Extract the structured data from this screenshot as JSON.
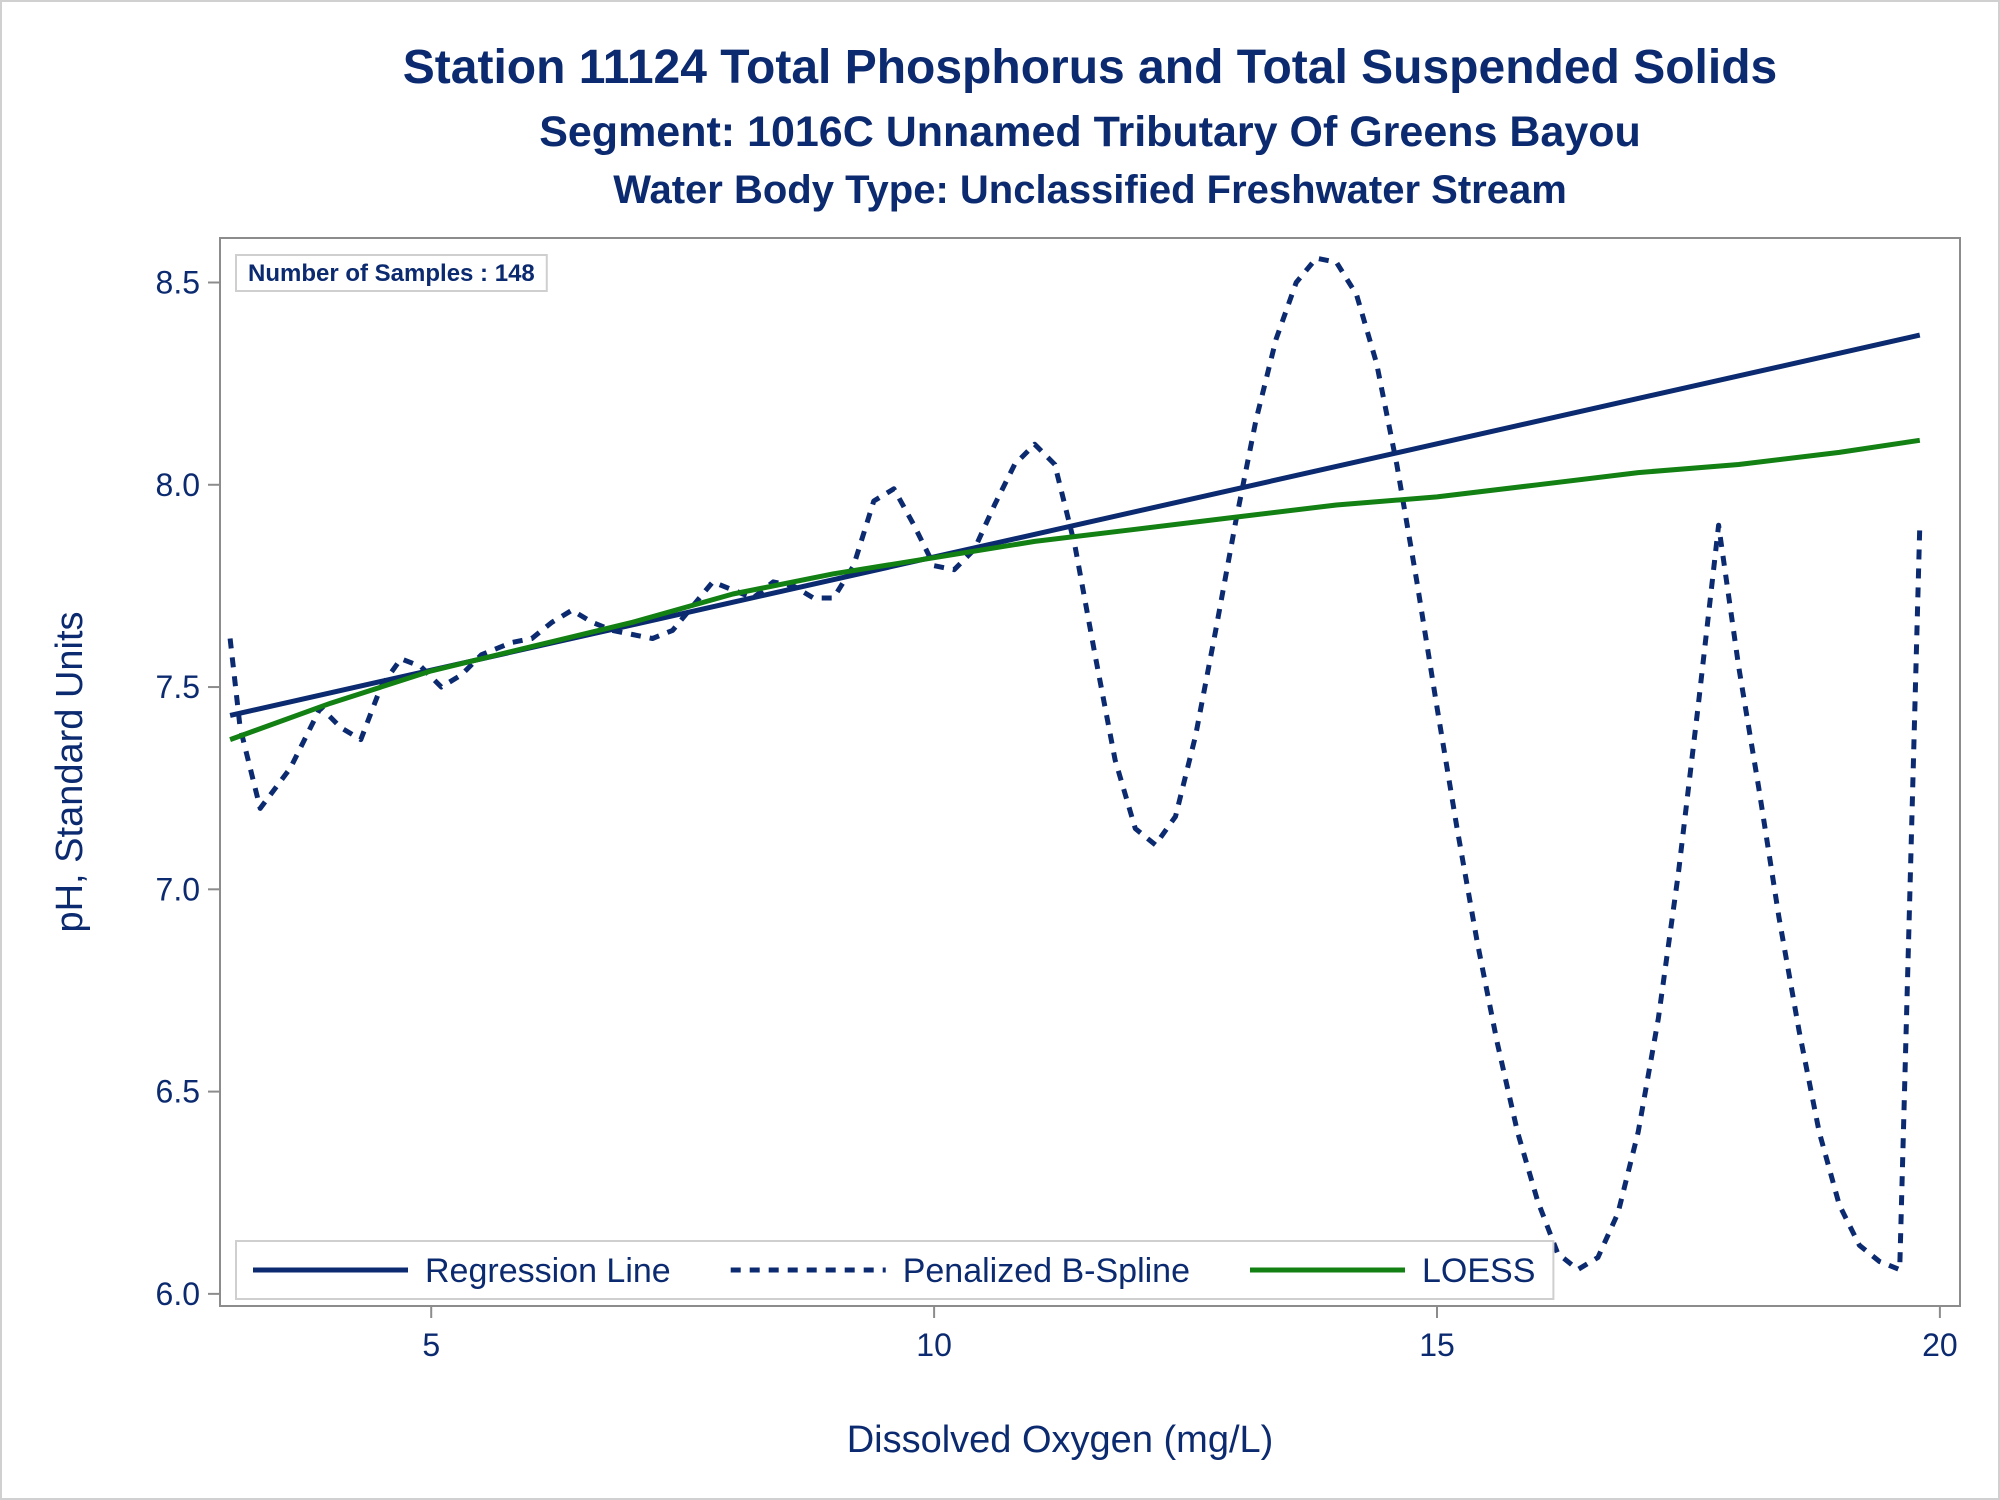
{
  "titles": {
    "line1": "Station 11124  Total Phosphorus and Total Suspended Solids",
    "line2": "Segment: 1016C  Unnamed Tributary Of Greens Bayou",
    "line3": "Water Body Type: Unclassified Freshwater Stream"
  },
  "inset": {
    "text": "Number of Samples : 148"
  },
  "colors": {
    "text": "#0b2a6f",
    "regression": "#0b2a6f",
    "spline": "#0b2a6f",
    "loess": "#138013",
    "axis": "#8c8c8c"
  },
  "chart_data": {
    "type": "line",
    "xlabel": "Dissolved Oxygen (mg/L)",
    "ylabel": "pH, Standard Units",
    "xlim": [
      2.9,
      20.2
    ],
    "ylim": [
      5.97,
      8.61
    ],
    "xticks": [
      5,
      10,
      15,
      20
    ],
    "xtick_labels": [
      "5",
      "10",
      "15",
      "20"
    ],
    "yticks": [
      6.0,
      6.5,
      7.0,
      7.5,
      8.0,
      8.5
    ],
    "ytick_labels": [
      "6.0",
      "6.5",
      "7.0",
      "7.5",
      "8.0",
      "8.5"
    ],
    "grid": false,
    "legend_position": "bottom-left",
    "series": [
      {
        "name": "Regression Line",
        "style": "solid",
        "color": "#0b2a6f",
        "x": [
          3.0,
          19.8
        ],
        "y": [
          7.43,
          8.37
        ]
      },
      {
        "name": "Penalized B-Spline",
        "style": "dashed",
        "color": "#0b2a6f",
        "x": [
          3.0,
          3.1,
          3.3,
          3.6,
          3.9,
          4.1,
          4.3,
          4.5,
          4.7,
          4.9,
          5.1,
          5.3,
          5.5,
          5.8,
          6.0,
          6.2,
          6.4,
          6.6,
          6.8,
          7.0,
          7.2,
          7.4,
          7.6,
          7.8,
          8.0,
          8.2,
          8.4,
          8.6,
          8.8,
          9.0,
          9.2,
          9.4,
          9.6,
          9.8,
          10.0,
          10.2,
          10.4,
          10.6,
          10.8,
          11.0,
          11.2,
          11.4,
          11.6,
          11.8,
          12.0,
          12.2,
          12.4,
          12.6,
          12.8,
          13.0,
          13.2,
          13.4,
          13.6,
          13.8,
          14.0,
          14.2,
          14.4,
          14.6,
          14.8,
          15.0,
          15.2,
          15.4,
          15.6,
          15.8,
          16.0,
          16.2,
          16.4,
          16.6,
          16.8,
          17.0,
          17.2,
          17.4,
          17.6,
          17.8,
          18.0,
          18.2,
          18.4,
          18.6,
          18.8,
          19.0,
          19.2,
          19.4,
          19.6,
          19.8
        ],
        "y": [
          7.62,
          7.4,
          7.2,
          7.3,
          7.45,
          7.4,
          7.37,
          7.5,
          7.57,
          7.55,
          7.5,
          7.53,
          7.58,
          7.61,
          7.62,
          7.66,
          7.69,
          7.66,
          7.64,
          7.63,
          7.62,
          7.64,
          7.7,
          7.76,
          7.74,
          7.72,
          7.76,
          7.75,
          7.72,
          7.72,
          7.8,
          7.96,
          7.99,
          7.9,
          7.8,
          7.79,
          7.84,
          7.95,
          8.05,
          8.1,
          8.05,
          7.85,
          7.58,
          7.32,
          7.15,
          7.11,
          7.18,
          7.38,
          7.64,
          7.91,
          8.16,
          8.36,
          8.5,
          8.56,
          8.55,
          8.47,
          8.3,
          8.05,
          7.76,
          7.45,
          7.15,
          6.87,
          6.62,
          6.4,
          6.23,
          6.1,
          6.06,
          6.09,
          6.2,
          6.4,
          6.68,
          7.04,
          7.46,
          7.9,
          7.55,
          7.25,
          6.93,
          6.65,
          6.4,
          6.22,
          6.12,
          6.08,
          6.06,
          7.9
        ]
      },
      {
        "name": "LOESS",
        "style": "solid",
        "color": "#138013",
        "x": [
          3.0,
          4.0,
          5.0,
          6.0,
          7.0,
          8.0,
          9.0,
          10.0,
          11.0,
          12.0,
          13.0,
          14.0,
          15.0,
          16.0,
          17.0,
          18.0,
          19.0,
          19.8
        ],
        "y": [
          7.37,
          7.46,
          7.54,
          7.6,
          7.66,
          7.73,
          7.78,
          7.82,
          7.86,
          7.89,
          7.92,
          7.95,
          7.97,
          8.0,
          8.03,
          8.05,
          8.08,
          8.11
        ]
      }
    ]
  }
}
